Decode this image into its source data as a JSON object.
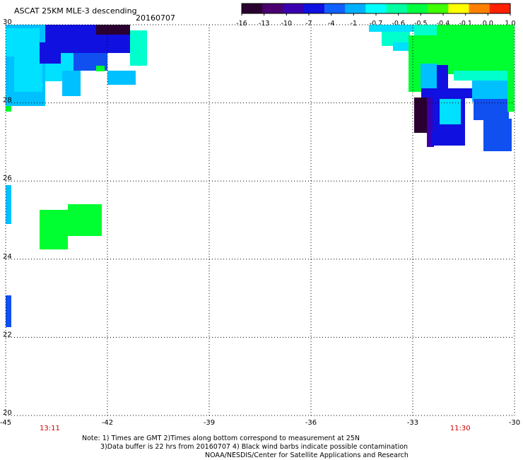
{
  "header": {
    "title": "ASCAT 25KM MLE-3 descending",
    "date": "20160707"
  },
  "colorbar": {
    "tick_labels": [
      "-16",
      "-13",
      "-10",
      "-7",
      "-4",
      "-1",
      "-0.7",
      "-0.6",
      "-0.5",
      "-0.4",
      "-0.1",
      "0.0",
      "1.0"
    ],
    "colors": [
      "#2a0030",
      "#4a0070",
      "#3a00b0",
      "#1010e0",
      "#1060ff",
      "#00b0ff",
      "#00ffff",
      "#00ffa0",
      "#00ff40",
      "#40ff00",
      "#ffff00",
      "#ff8000",
      "#ff2000"
    ]
  },
  "map": {
    "lon_ticks": [
      "-45",
      "-42",
      "-39",
      "-36",
      "-33",
      "-30"
    ],
    "lat_ticks": [
      "30",
      "28",
      "26",
      "24",
      "22",
      "20"
    ],
    "lon_range": [
      -45,
      -30
    ],
    "lat_range": [
      20,
      30
    ],
    "grid": true,
    "pass_times": [
      {
        "time": "13:11",
        "lon": -43.7
      },
      {
        "time": "11:30",
        "lon": -31.6
      }
    ],
    "palette": {
      "dark_purple": "#2a0030",
      "indigo": "#3a00b0",
      "blue": "#1010e0",
      "mid_blue": "#1050f0",
      "sky": "#00c0ff",
      "cyan": "#00e0ff",
      "aqua": "#00ffcc",
      "green": "#00ff30"
    }
  },
  "notes": {
    "line1": "Note: 1) Times are GMT 2)Times along bottom correspond to measurement at 25N",
    "line2": "3)Data buffer is 22 hrs from 20160707 4) Black wind barbs indicate possible contamination",
    "line3": "NOAA/NESDIS/Center for Satellite Applications and Research"
  }
}
